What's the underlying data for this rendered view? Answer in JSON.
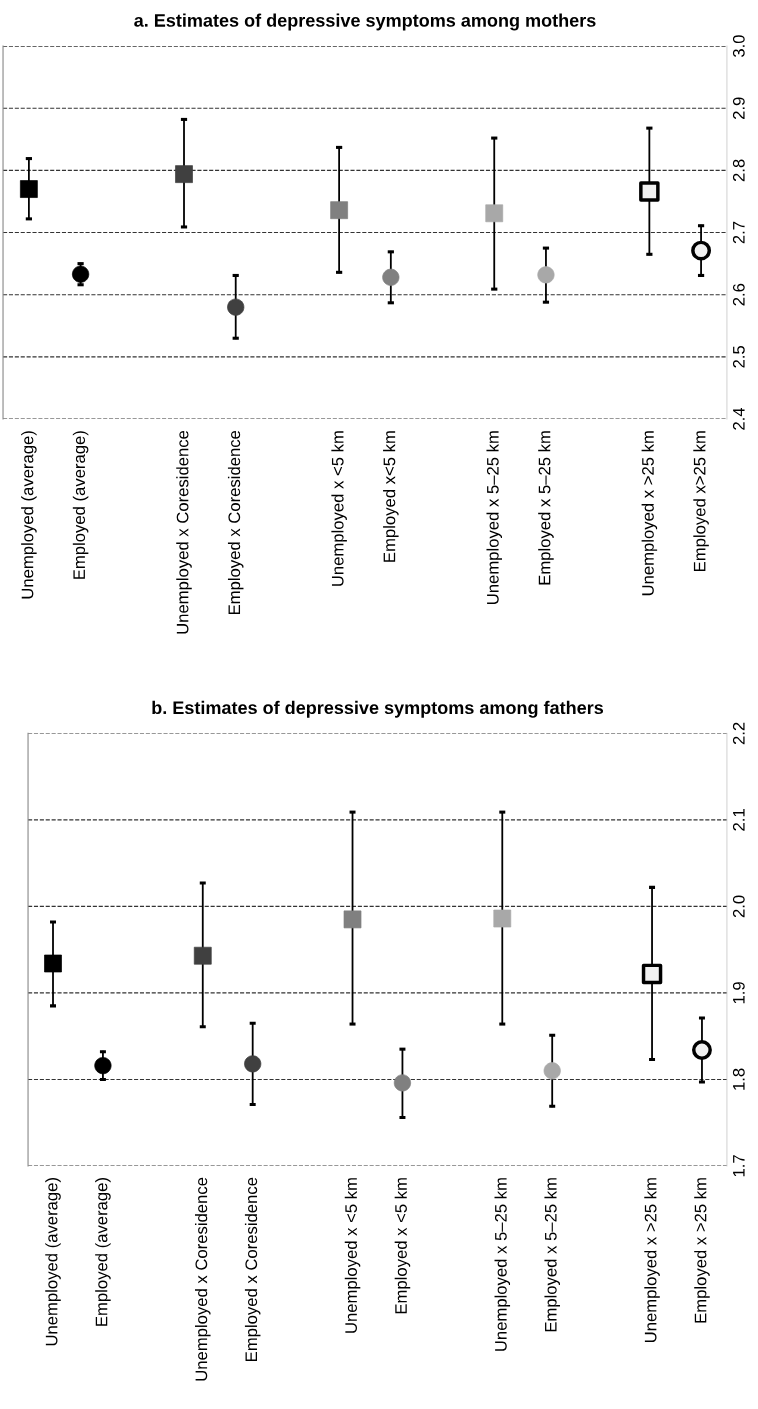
{
  "chart_data": [
    {
      "type": "scatter",
      "title": "a. Estimates of depressive symptoms among mothers",
      "categories": [
        "Unemployed (average)",
        "Employed (average)",
        null,
        "Unemployed x Coresidence",
        "Employed x Coresidence",
        null,
        "Unemployed x <5 km",
        "Employed x<5 km",
        null,
        "Unemployed x 5–25 km",
        "Employed x 5–25 km",
        null,
        "Unemployed x >25 km",
        "Employed x>25 km"
      ],
      "series": [
        {
          "marker": "square",
          "colors": [
            "#000000",
            null,
            null,
            "#404040",
            null,
            null,
            "#808080",
            null,
            null,
            "#a8a8a8",
            null,
            null,
            "#f0f0f0",
            null
          ],
          "values": [
            2.77,
            null,
            null,
            2.794,
            null,
            null,
            2.736,
            null,
            null,
            2.731,
            null,
            null,
            2.766,
            null
          ],
          "errors": [
            [
              2.722,
              2.819
            ],
            null,
            null,
            [
              2.709,
              2.882
            ],
            null,
            null,
            [
              2.636,
              2.837
            ],
            null,
            null,
            [
              2.609,
              2.852
            ],
            null,
            null,
            [
              2.665,
              2.868
            ],
            null
          ]
        },
        {
          "marker": "circle",
          "colors": [
            null,
            "#000000",
            null,
            null,
            "#404040",
            null,
            null,
            "#808080",
            null,
            null,
            "#a8a8a8",
            null,
            null,
            "#f0f0f0"
          ],
          "values": [
            null,
            2.633,
            null,
            null,
            2.58,
            null,
            null,
            2.628,
            null,
            null,
            2.632,
            null,
            null,
            2.671
          ],
          "errors": [
            null,
            [
              2.616,
              2.65
            ],
            null,
            null,
            [
              2.53,
              2.631
            ],
            null,
            null,
            [
              2.587,
              2.669
            ],
            null,
            null,
            [
              2.588,
              2.675
            ],
            null,
            null,
            [
              2.631,
              2.711
            ]
          ]
        }
      ],
      "ylim": [
        2.4,
        3.0
      ],
      "yticks": [
        {
          "value": 2.4,
          "label": "2.4"
        },
        {
          "value": 2.5,
          "label": "2.5"
        },
        {
          "value": 2.6,
          "label": "2.6"
        },
        {
          "value": 2.7,
          "label": "2.7"
        },
        {
          "value": 2.8,
          "label": "2.8"
        },
        {
          "value": 2.9,
          "label": "2.9"
        },
        {
          "value": 3.0,
          "label": "3.0"
        }
      ],
      "grid": "y",
      "line_style": "dashed"
    },
    {
      "type": "scatter",
      "title": "b. Estimates of depressive symptoms among fathers",
      "categories": [
        "Unemployed (average)",
        "Employed (average)",
        null,
        "Unemployed x Coresidence",
        "Employed x Coresidence",
        null,
        "Unemployed x <5 km",
        "Employed x <5 km",
        null,
        "Unemployed x 5–25 km",
        "Employed x 5–25 km",
        null,
        "Unemployed x >25 km",
        "Employed x >25 km"
      ],
      "series": [
        {
          "marker": "square",
          "colors": [
            "#000000",
            null,
            null,
            "#404040",
            null,
            null,
            "#808080",
            null,
            null,
            "#a8a8a8",
            null,
            null,
            "#f0f0f0",
            null
          ],
          "values": [
            1.934,
            null,
            null,
            1.943,
            null,
            null,
            1.985,
            null,
            null,
            1.986,
            null,
            null,
            1.922,
            null
          ],
          "errors": [
            [
              1.885,
              1.982
            ],
            null,
            null,
            [
              1.861,
              2.027
            ],
            null,
            null,
            [
              1.864,
              2.109
            ],
            null,
            null,
            [
              1.864,
              2.109
            ],
            null,
            null,
            [
              1.823,
              2.022
            ],
            null
          ]
        },
        {
          "marker": "circle",
          "colors": [
            null,
            "#000000",
            null,
            null,
            "#404040",
            null,
            null,
            "#808080",
            null,
            null,
            "#a8a8a8",
            null,
            null,
            "#f0f0f0"
          ],
          "values": [
            null,
            1.816,
            null,
            null,
            1.818,
            null,
            null,
            1.796,
            null,
            null,
            1.81,
            null,
            null,
            1.834
          ],
          "errors": [
            null,
            [
              1.8,
              1.832
            ],
            null,
            null,
            [
              1.771,
              1.865
            ],
            null,
            null,
            [
              1.756,
              1.835
            ],
            null,
            null,
            [
              1.769,
              1.851
            ],
            null,
            null,
            [
              1.797,
              1.871
            ]
          ]
        }
      ],
      "ylim": [
        1.7,
        2.2
      ],
      "yticks": [
        {
          "value": 1.7,
          "label": "1.7"
        },
        {
          "value": 1.8,
          "label": "1.8"
        },
        {
          "value": 1.9,
          "label": "1.9"
        },
        {
          "value": 2.0,
          "label": "2.0"
        },
        {
          "value": 2.1,
          "label": "2.1"
        },
        {
          "value": 2.2,
          "label": "2.2"
        }
      ],
      "grid": "y",
      "line_style": "dashed"
    }
  ]
}
